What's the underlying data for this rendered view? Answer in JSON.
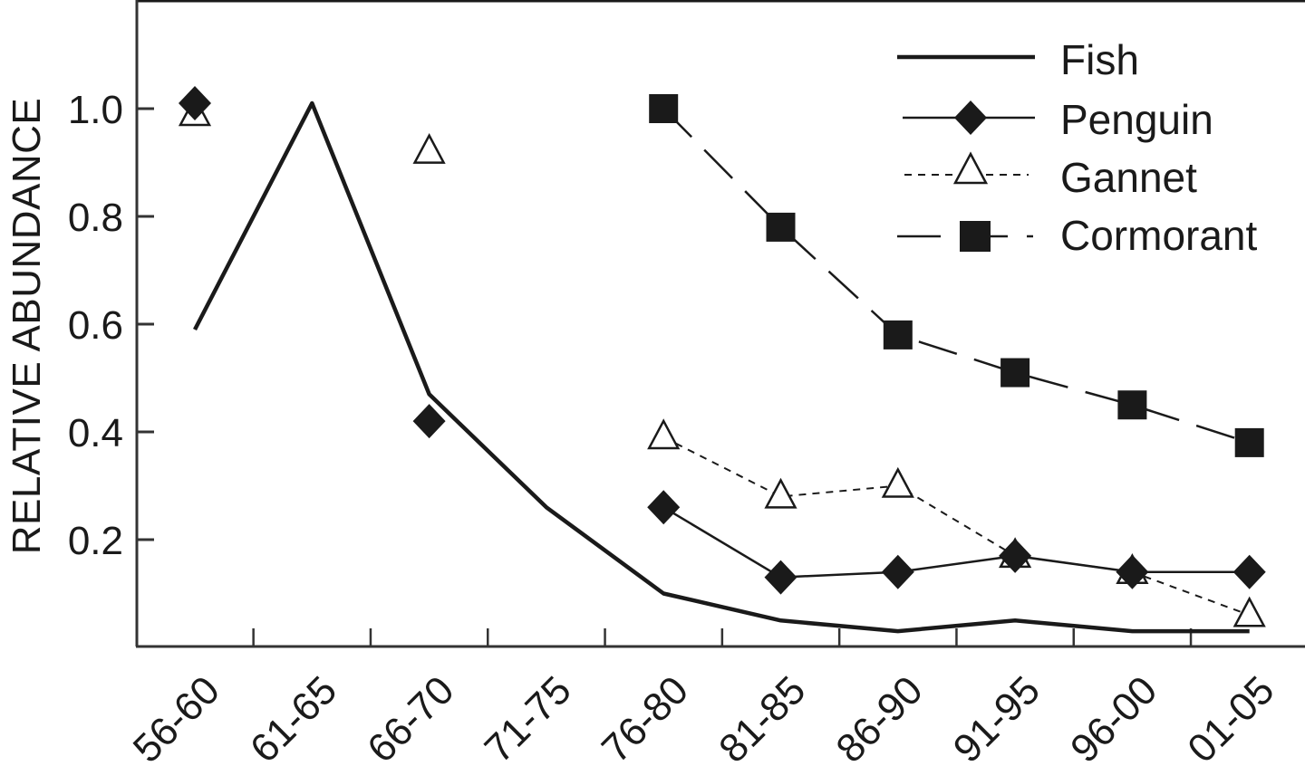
{
  "chart_data": {
    "type": "line",
    "title": "",
    "xlabel": "",
    "ylabel": "RELATIVE ABUNDANCE",
    "ylim": [
      0,
      1.2
    ],
    "yticks": [
      0.2,
      0.4,
      0.6,
      0.8,
      1.0
    ],
    "ytick_labels": [
      "0.2",
      "0.4",
      "0.6",
      "0.8",
      "1.0"
    ],
    "grid": false,
    "legend_position": "top-right",
    "categories": [
      "56-60",
      "61-65",
      "66-70",
      "71-75",
      "76-80",
      "81-85",
      "86-90",
      "91-95",
      "96-00",
      "01-05"
    ],
    "series": [
      {
        "name": "Fish",
        "style": "solid-thick",
        "marker": "none",
        "values": [
          0.59,
          1.01,
          0.47,
          0.26,
          0.1,
          0.05,
          0.03,
          0.05,
          0.03,
          0.03
        ]
      },
      {
        "name": "Penguin",
        "style": "solid",
        "marker": "filled-diamond",
        "values": [
          1.01,
          null,
          0.42,
          null,
          0.26,
          0.13,
          0.14,
          0.17,
          0.14,
          0.14
        ]
      },
      {
        "name": "Gannet",
        "style": "dashed",
        "marker": "open-triangle",
        "values": [
          0.99,
          null,
          0.92,
          null,
          0.39,
          0.28,
          0.3,
          0.17,
          0.14,
          0.06
        ]
      },
      {
        "name": "Cormorant",
        "style": "long-dash",
        "marker": "filled-square",
        "values": [
          null,
          null,
          null,
          null,
          1.0,
          0.78,
          0.58,
          0.51,
          0.45,
          0.38
        ]
      }
    ]
  },
  "colors": {
    "ink": "#1a1a1a",
    "background": "#ffffff"
  }
}
